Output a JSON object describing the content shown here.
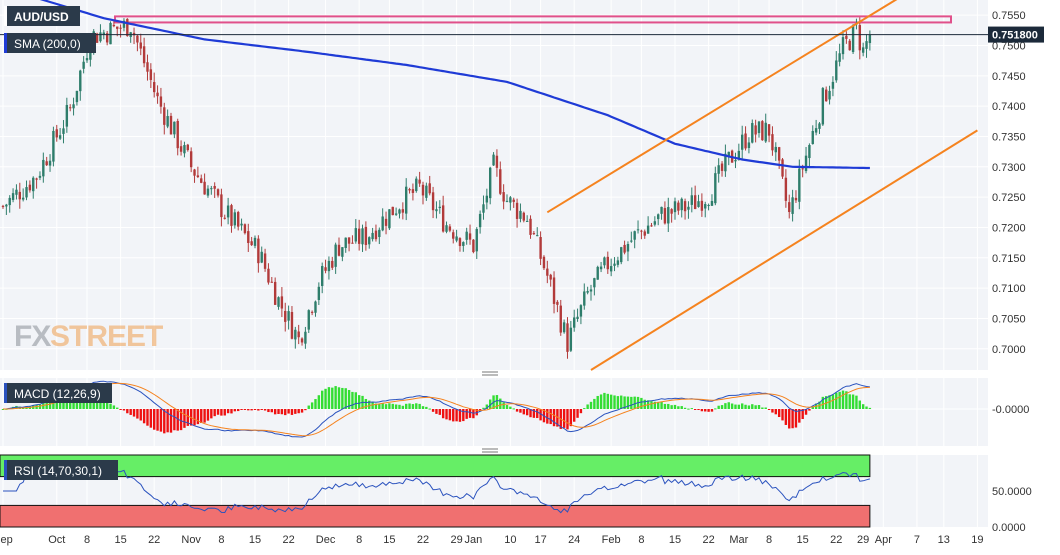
{
  "header": {
    "symbol": "AUD/USD"
  },
  "logo": {
    "text_fx": "FX",
    "text_street": "STREET"
  },
  "colors": {
    "panel_bg": "#f2f4f8",
    "grid": "#ffffff",
    "bull": "#2e7d6b",
    "bear": "#b23a3a",
    "sma": "#1f3bd6",
    "trend": "#f5831f",
    "resistance": "#e0508a",
    "macd_line": "#2a52be",
    "signal_line": "#f5831f",
    "hist_pos": "#33dd33",
    "hist_neg": "#ee1111",
    "rsi_line": "#2a52be",
    "rsi_overbought": "#66ee66",
    "rsi_oversold": "#f07070",
    "badge": "#1c2a3a"
  },
  "chart_data": [
    {
      "type": "candlestick",
      "name": "price",
      "legend": "SMA (200,0)",
      "last_price_label": "0.751800",
      "last_price": 0.7518,
      "ylim": [
        0.6965,
        0.7575
      ],
      "ytick_values": [
        0.7,
        0.705,
        0.71,
        0.715,
        0.72,
        0.725,
        0.73,
        0.735,
        0.74,
        0.745,
        0.75,
        0.755
      ],
      "ytick_labels": [
        "0.7000",
        "0.7050",
        "0.7100",
        "0.7150",
        "0.7200",
        "0.7250",
        "0.7300",
        "0.7350",
        "0.7400",
        "0.7450",
        "0.7500",
        "0.7550"
      ],
      "anchors": [
        [
          0,
          0.7235
        ],
        [
          10,
          0.7285
        ],
        [
          20,
          0.7395
        ],
        [
          26,
          0.7515
        ],
        [
          38,
          0.7535
        ],
        [
          46,
          0.741
        ],
        [
          56,
          0.73
        ],
        [
          66,
          0.7225
        ],
        [
          76,
          0.716
        ],
        [
          82,
          0.708
        ],
        [
          88,
          0.7015
        ],
        [
          94,
          0.711
        ],
        [
          100,
          0.717
        ],
        [
          108,
          0.7185
        ],
        [
          118,
          0.724
        ],
        [
          124,
          0.7265
        ],
        [
          132,
          0.7205
        ],
        [
          140,
          0.717
        ],
        [
          146,
          0.73
        ],
        [
          150,
          0.7245
        ],
        [
          156,
          0.7215
        ],
        [
          162,
          0.712
        ],
        [
          168,
          0.701
        ],
        [
          174,
          0.709
        ],
        [
          180,
          0.714
        ],
        [
          188,
          0.7185
        ],
        [
          196,
          0.722
        ],
        [
          204,
          0.7235
        ],
        [
          210,
          0.7255
        ],
        [
          216,
          0.731
        ],
        [
          222,
          0.7355
        ],
        [
          228,
          0.736
        ],
        [
          234,
          0.722
        ],
        [
          238,
          0.73
        ],
        [
          244,
          0.741
        ],
        [
          250,
          0.7495
        ],
        [
          254,
          0.7525
        ],
        [
          256,
          0.749
        ],
        [
          258,
          0.7518
        ]
      ],
      "sma_anchors": [
        [
          0,
          0.7595
        ],
        [
          30,
          0.7545
        ],
        [
          60,
          0.751
        ],
        [
          90,
          0.749
        ],
        [
          120,
          0.7468
        ],
        [
          150,
          0.744
        ],
        [
          180,
          0.7385
        ],
        [
          200,
          0.7338
        ],
        [
          220,
          0.7312
        ],
        [
          235,
          0.73
        ],
        [
          258,
          0.7298
        ]
      ],
      "trendlines": [
        {
          "x1": 162,
          "y1": 0.7225,
          "x2": 273,
          "y2": 0.76
        },
        {
          "x1": 175,
          "y1": 0.6965,
          "x2": 290,
          "y2": 0.736
        }
      ],
      "resistance_band": [
        0.7538,
        0.7548
      ],
      "xtick_labels": [
        "Sep",
        "Oct",
        "8",
        "15",
        "22",
        "Nov",
        "8",
        "15",
        "22",
        "Dec",
        "8",
        "15",
        "22",
        "29",
        "Jan",
        "10",
        "17",
        "24",
        "Feb",
        "8",
        "15",
        "22",
        "Mar",
        "8",
        "15",
        "22",
        "29",
        "Apr",
        "7",
        "13",
        "19"
      ],
      "xtick_index": [
        0,
        16,
        25,
        35,
        45,
        56,
        65,
        75,
        85,
        96,
        106,
        115,
        125,
        135,
        140,
        151,
        160,
        170,
        181,
        190,
        200,
        210,
        219,
        228,
        238,
        248,
        256,
        262,
        272,
        280,
        290
      ]
    },
    {
      "type": "line",
      "name": "MACD",
      "legend": "MACD (12,26,9)",
      "ytick_labels": [
        "-0.0000"
      ],
      "ylim": [
        -1,
        1
      ]
    },
    {
      "type": "line",
      "name": "RSI",
      "legend": "RSI (14,70,30,1)",
      "ylim": [
        0,
        100
      ],
      "ytick_values": [
        50,
        0
      ],
      "ytick_labels": [
        "50.0000",
        "0.0000"
      ],
      "levels": [
        70,
        30
      ]
    }
  ]
}
